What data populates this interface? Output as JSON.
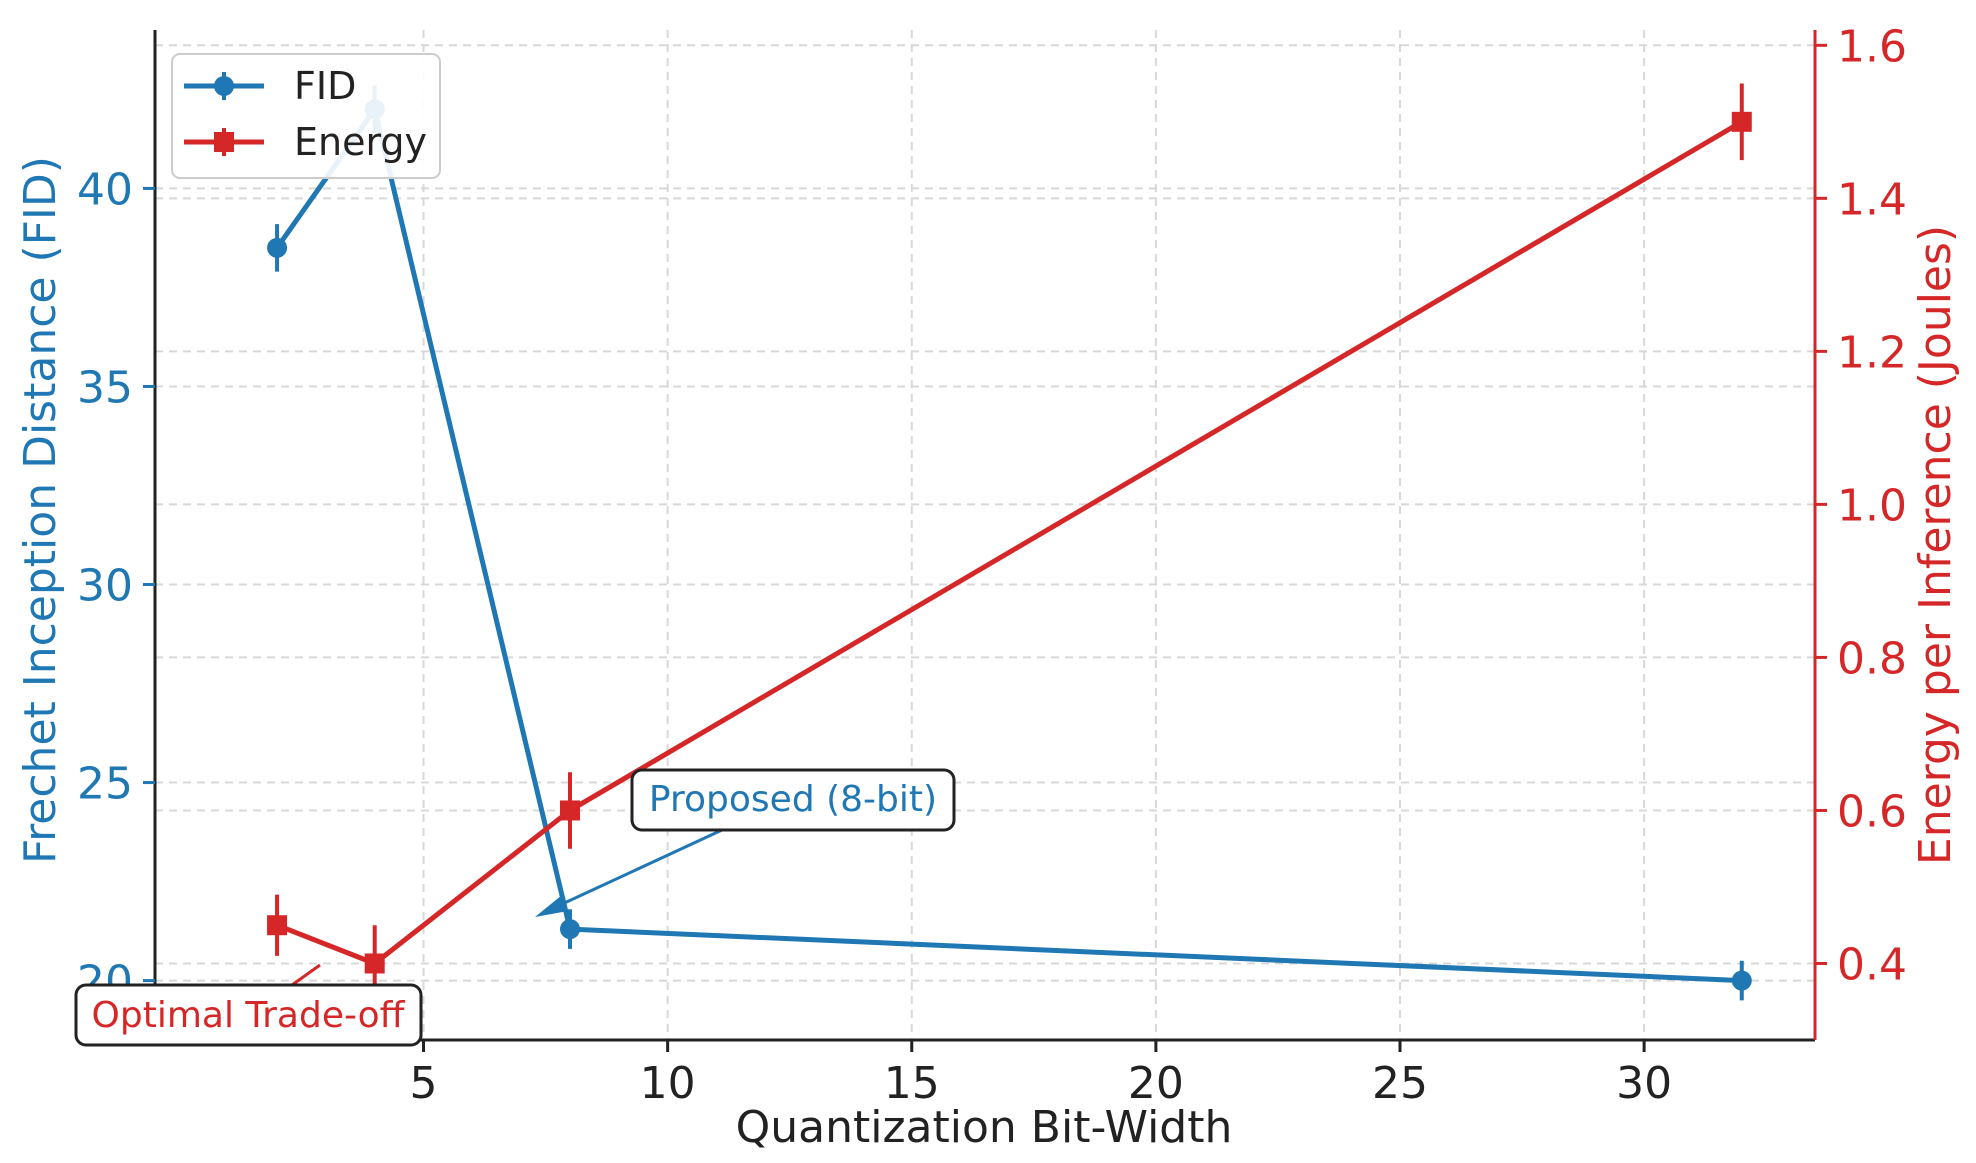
{
  "chart_data": {
    "type": "line",
    "xlabel": "Quantization Bit-Width",
    "ylabel_left": "Frechet Inception Distance (FID)",
    "ylabel_right": "Energy per Inference (Joules)",
    "xlim": [
      -0.5,
      33.5
    ],
    "ylim_left": [
      18.5,
      44
    ],
    "ylim_right": [
      0.3,
      1.62
    ],
    "x_ticks": [
      5,
      10,
      15,
      20,
      25,
      30
    ],
    "y_ticks_left": [
      20,
      25,
      30,
      35,
      40
    ],
    "y_ticks_right": [
      0.4,
      0.6,
      0.8,
      1.0,
      1.2,
      1.4,
      1.6
    ],
    "y_tick_labels_right": [
      "0.4",
      "0.6",
      "0.8",
      "1.0",
      "1.2",
      "1.4",
      "1.6"
    ],
    "grid": true,
    "legend_position": "top-left",
    "series": [
      {
        "name": "FID",
        "axis": "left",
        "color": "#1f77b4",
        "marker": "circle",
        "x": [
          2,
          4,
          8,
          32
        ],
        "values": [
          38.5,
          42.0,
          21.3,
          20.0
        ],
        "errors": [
          0.6,
          0.6,
          0.5,
          0.5
        ]
      },
      {
        "name": "Energy",
        "axis": "right",
        "color": "#d62728",
        "marker": "square",
        "x": [
          2,
          4,
          8,
          32
        ],
        "values": [
          0.45,
          0.4,
          0.6,
          1.5
        ],
        "errors": [
          0.04,
          0.05,
          0.05,
          0.05
        ]
      }
    ],
    "annotations": [
      {
        "text": "Proposed (8-bit)",
        "color": "#1f77b4",
        "target_x": 8,
        "target_y": 21.3,
        "axis": "left"
      },
      {
        "text": "Optimal Trade-off",
        "color": "#d62728",
        "target_x": 4,
        "target_y": 0.4,
        "axis": "right"
      }
    ]
  }
}
